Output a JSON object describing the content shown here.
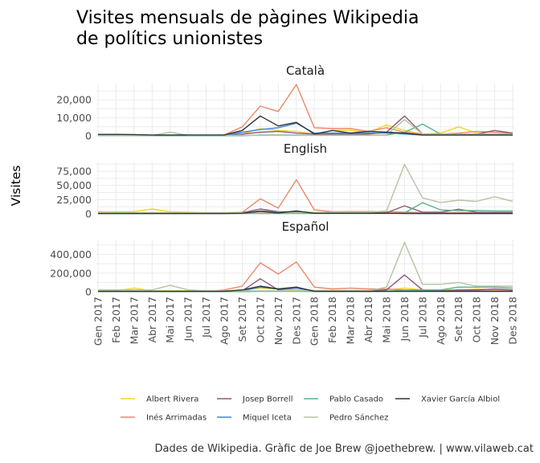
{
  "chart_data": {
    "type": "line",
    "title_lines": [
      "Visites mensuals de pàgines Wikipedia",
      "de polítics unionistes"
    ],
    "ylabel": "Visites",
    "caption": "Dades de Wikipedia. Gràfic de Joe Brew @joethebrew. | www.vilaweb.cat",
    "x": [
      "Gen 2017",
      "Feb 2017",
      "Mar 2017",
      "Abr 2017",
      "Mai 2017",
      "Jun 2017",
      "Jul 2017",
      "Ago 2017",
      "Set 2017",
      "Oct 2017",
      "Nov 2017",
      "Des 2017",
      "Gen 2018",
      "Feb 2018",
      "Mar 2018",
      "Abr 2018",
      "Mai 2018",
      "Jun 2018",
      "Jul 2018",
      "Ago 2018",
      "Set 2018",
      "Oct 2018",
      "Nov 2018",
      "Des 2018"
    ],
    "series_colors": {
      "Albert Rivera": "#f5d327",
      "Inés Arrimadas": "#e8896b",
      "Josep Borrell": "#8c5a7c",
      "Miquel Iceta": "#3f86d6",
      "Pablo Casado": "#5bb38c",
      "Pedro Sánchez": "#b5c4a1",
      "Xavier García Albiol": "#333333"
    },
    "legend": [
      {
        "name": "Albert Rivera",
        "color": "#f5d327"
      },
      {
        "name": "Inés Arrimadas",
        "color": "#e8896b"
      },
      {
        "name": "Josep Borrell",
        "color": "#8c5a7c"
      },
      {
        "name": "Miquel Iceta",
        "color": "#3f86d6"
      },
      {
        "name": "Pablo Casado",
        "color": "#5bb38c"
      },
      {
        "name": "Pedro Sánchez",
        "color": "#b5c4a1"
      },
      {
        "name": "Xavier García Albiol",
        "color": "#333333"
      }
    ],
    "legend_position": "bottom",
    "grid": true,
    "panels": [
      {
        "strip": "Català",
        "ylim": [
          0,
          29000
        ],
        "yticks": [
          0,
          10000,
          20000
        ],
        "ytick_labels": [
          "0",
          "10,000",
          "20,000"
        ],
        "series": [
          {
            "name": "Albert Rivera",
            "values": [
              300,
              300,
              400,
              300,
              300,
              300,
              300,
              300,
              1000,
              4000,
              3000,
              2500,
              1000,
              3000,
              3000,
              2000,
              6000,
              3000,
              1000,
              1500,
              5000,
              1500,
              1000,
              1000
            ]
          },
          {
            "name": "Inés Arrimadas",
            "values": [
              200,
              200,
              200,
              200,
              200,
              200,
              200,
              500,
              5000,
              16500,
              13500,
              28500,
              4500,
              4000,
              4000,
              2500,
              4500,
              2000,
              1000,
              1000,
              1500,
              2500,
              2000,
              1500
            ]
          },
          {
            "name": "Josep Borrell",
            "values": [
              200,
              200,
              200,
              200,
              200,
              200,
              200,
              300,
              1000,
              2000,
              2500,
              1500,
              1000,
              1000,
              1000,
              1000,
              2000,
              11000,
              1000,
              1000,
              1000,
              1000,
              3000,
              1500
            ]
          },
          {
            "name": "Miquel Iceta",
            "values": [
              500,
              500,
              500,
              300,
              300,
              300,
              300,
              300,
              2000,
              3500,
              4500,
              7000,
              1500,
              1500,
              1500,
              1500,
              1500,
              1000,
              500,
              500,
              500,
              500,
              500,
              500
            ]
          },
          {
            "name": "Pablo Casado",
            "values": [
              100,
              100,
              100,
              100,
              100,
              100,
              100,
              100,
              100,
              500,
              500,
              500,
              300,
              300,
              300,
              300,
              500,
              2000,
              6500,
              1000,
              1000,
              1000,
              1000,
              1000
            ]
          },
          {
            "name": "Pedro Sánchez",
            "values": [
              200,
              200,
              200,
              200,
              2000,
              300,
              300,
              300,
              300,
              300,
              300,
              300,
              300,
              300,
              300,
              300,
              500,
              9000,
              1000,
              1000,
              1000,
              1000,
              1000,
              1000
            ]
          },
          {
            "name": "Xavier García Albiol",
            "values": [
              800,
              800,
              700,
              500,
              500,
              500,
              500,
              500,
              3000,
              11000,
              5500,
              7500,
              1000,
              3000,
              1500,
              2500,
              2000,
              1500,
              500,
              500,
              500,
              500,
              500,
              500
            ]
          }
        ]
      },
      {
        "strip": "English",
        "ylim": [
          0,
          92000
        ],
        "yticks": [
          0,
          25000,
          50000,
          75000
        ],
        "ytick_labels": [
          "0",
          "25,000",
          "50,000",
          "75,000"
        ],
        "series": [
          {
            "name": "Albert Rivera",
            "values": [
              3500,
              3500,
              4000,
              8500,
              3500,
              3000,
              2000,
              2000,
              3000,
              5000,
              3500,
              4000,
              2500,
              2500,
              2500,
              2500,
              3000,
              3000,
              2000,
              2000,
              2000,
              2500,
              2500,
              2500
            ]
          },
          {
            "name": "Inés Arrimadas",
            "values": [
              500,
              500,
              500,
              500,
              500,
              500,
              500,
              500,
              2500,
              26500,
              10000,
              60000,
              7000,
              3500,
              4000,
              4000,
              4000,
              3000,
              2000,
              2000,
              2000,
              2500,
              2500,
              2500
            ]
          },
          {
            "name": "Josep Borrell",
            "values": [
              500,
              500,
              500,
              500,
              500,
              500,
              500,
              500,
              2000,
              8500,
              3500,
              3000,
              1500,
              1500,
              1500,
              1500,
              2000,
              14000,
              3000,
              3000,
              8000,
              3000,
              2000,
              2000
            ]
          },
          {
            "name": "Miquel Iceta",
            "values": [
              500,
              500,
              500,
              500,
              500,
              500,
              500,
              500,
              1000,
              5000,
              2000,
              2000,
              1000,
              1000,
              1000,
              1000,
              1000,
              1000,
              500,
              500,
              500,
              500,
              500,
              500
            ]
          },
          {
            "name": "Pablo Casado",
            "values": [
              500,
              500,
              500,
              500,
              500,
              500,
              500,
              500,
              500,
              500,
              500,
              500,
              500,
              500,
              500,
              500,
              500,
              1500,
              19500,
              7000,
              5500,
              6000,
              5000,
              5000
            ]
          },
          {
            "name": "Pedro Sánchez",
            "values": [
              2000,
              2000,
              2000,
              2000,
              2000,
              2000,
              2000,
              2000,
              2000,
              2000,
              2000,
              2000,
              2000,
              3000,
              3000,
              3000,
              5000,
              87000,
              28000,
              20000,
              24000,
              22000,
              30000,
              22000
            ]
          },
          {
            "name": "Xavier García Albiol",
            "values": [
              500,
              500,
              500,
              500,
              500,
              500,
              500,
              500,
              1000,
              4500,
              1500,
              5000,
              1000,
              1000,
              1000,
              1000,
              1000,
              500,
              500,
              500,
              500,
              500,
              500,
              500
            ]
          }
        ]
      },
      {
        "strip": "Español",
        "ylim": [
          0,
          560000
        ],
        "yticks": [
          0,
          200000,
          400000
        ],
        "ytick_labels": [
          "0",
          "200,000",
          "400,000"
        ],
        "series": [
          {
            "name": "Albert Rivera",
            "values": [
              10000,
              10000,
              40000,
              10000,
              10000,
              10000,
              10000,
              10000,
              20000,
              40000,
              30000,
              20000,
              15000,
              15000,
              15000,
              15000,
              20000,
              40000,
              20000,
              20000,
              20000,
              30000,
              20000,
              20000
            ]
          },
          {
            "name": "Inés Arrimadas",
            "values": [
              3000,
              3000,
              3000,
              3000,
              3000,
              3000,
              3000,
              20000,
              60000,
              310000,
              190000,
              320000,
              50000,
              30000,
              40000,
              30000,
              30000,
              20000,
              10000,
              10000,
              10000,
              10000,
              10000,
              10000
            ]
          },
          {
            "name": "Josep Borrell",
            "values": [
              3000,
              3000,
              3000,
              3000,
              3000,
              3000,
              3000,
              3000,
              10000,
              140000,
              20000,
              40000,
              10000,
              10000,
              10000,
              10000,
              20000,
              180000,
              20000,
              10000,
              20000,
              20000,
              30000,
              20000
            ]
          },
          {
            "name": "Miquel Iceta",
            "values": [
              5000,
              5000,
              5000,
              5000,
              5000,
              5000,
              5000,
              5000,
              10000,
              50000,
              30000,
              40000,
              10000,
              5000,
              5000,
              5000,
              5000,
              5000,
              5000,
              5000,
              5000,
              5000,
              5000,
              5000
            ]
          },
          {
            "name": "Pablo Casado",
            "values": [
              2000,
              2000,
              2000,
              2000,
              2000,
              2000,
              2000,
              2000,
              2000,
              5000,
              5000,
              5000,
              3000,
              3000,
              3000,
              3000,
              5000,
              20000,
              20000,
              20000,
              50000,
              50000,
              50000,
              40000
            ]
          },
          {
            "name": "Pedro Sánchez",
            "values": [
              20000,
              20000,
              20000,
              20000,
              70000,
              20000,
              10000,
              10000,
              10000,
              10000,
              10000,
              10000,
              10000,
              10000,
              10000,
              10000,
              50000,
              530000,
              80000,
              80000,
              100000,
              60000,
              60000,
              60000
            ]
          },
          {
            "name": "Xavier García Albiol",
            "values": [
              5000,
              5000,
              5000,
              5000,
              5000,
              5000,
              5000,
              5000,
              20000,
              60000,
              30000,
              50000,
              5000,
              5000,
              5000,
              5000,
              5000,
              5000,
              5000,
              5000,
              5000,
              5000,
              5000,
              5000
            ]
          }
        ]
      }
    ]
  }
}
